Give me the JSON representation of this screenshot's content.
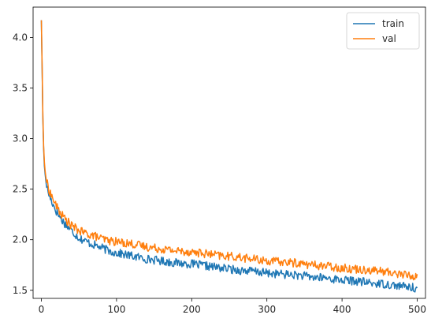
{
  "chart_data": {
    "type": "line",
    "title": "",
    "xlabel": "",
    "ylabel": "",
    "xlim": [
      -11,
      511
    ],
    "ylim": [
      1.42,
      4.3
    ],
    "xticks": [
      0,
      100,
      200,
      300,
      400,
      500
    ],
    "yticks": [
      1.5,
      2.0,
      2.5,
      3.0,
      3.5,
      4.0
    ],
    "xtick_labels": [
      "0",
      "100",
      "200",
      "300",
      "400",
      "500"
    ],
    "ytick_labels": [
      "1.5",
      "2.0",
      "2.5",
      "3.0",
      "3.5",
      "4.0"
    ],
    "grid": false,
    "legend_position": "top-right",
    "series": [
      {
        "name": "train",
        "color": "#1f77b4",
        "x": [
          0,
          1,
          2,
          3,
          4,
          5,
          6,
          8,
          10,
          12,
          15,
          20,
          25,
          30,
          40,
          50,
          60,
          70,
          80,
          90,
          100,
          120,
          140,
          160,
          180,
          200,
          220,
          240,
          260,
          280,
          300,
          320,
          340,
          360,
          380,
          400,
          420,
          440,
          460,
          480,
          500
        ],
        "y": [
          4.17,
          3.7,
          3.2,
          2.9,
          2.73,
          2.65,
          2.58,
          2.5,
          2.45,
          2.41,
          2.36,
          2.28,
          2.22,
          2.17,
          2.09,
          2.02,
          1.98,
          1.95,
          1.92,
          1.89,
          1.87,
          1.84,
          1.81,
          1.79,
          1.77,
          1.76,
          1.74,
          1.72,
          1.7,
          1.69,
          1.67,
          1.66,
          1.65,
          1.63,
          1.62,
          1.6,
          1.59,
          1.57,
          1.56,
          1.54,
          1.52
        ]
      },
      {
        "name": "val",
        "color": "#ff7f0e",
        "x": [
          0,
          1,
          2,
          3,
          4,
          5,
          6,
          8,
          10,
          12,
          15,
          20,
          25,
          30,
          40,
          50,
          60,
          70,
          80,
          90,
          100,
          120,
          140,
          160,
          180,
          200,
          220,
          240,
          260,
          280,
          300,
          320,
          340,
          360,
          380,
          400,
          420,
          440,
          460,
          480,
          500
        ],
        "y": [
          4.17,
          3.72,
          3.23,
          2.93,
          2.77,
          2.68,
          2.62,
          2.55,
          2.5,
          2.46,
          2.41,
          2.33,
          2.27,
          2.22,
          2.14,
          2.09,
          2.06,
          2.04,
          2.01,
          1.99,
          1.98,
          1.96,
          1.93,
          1.91,
          1.89,
          1.88,
          1.86,
          1.84,
          1.83,
          1.81,
          1.79,
          1.78,
          1.77,
          1.75,
          1.74,
          1.72,
          1.71,
          1.7,
          1.68,
          1.66,
          1.63
        ]
      }
    ]
  }
}
